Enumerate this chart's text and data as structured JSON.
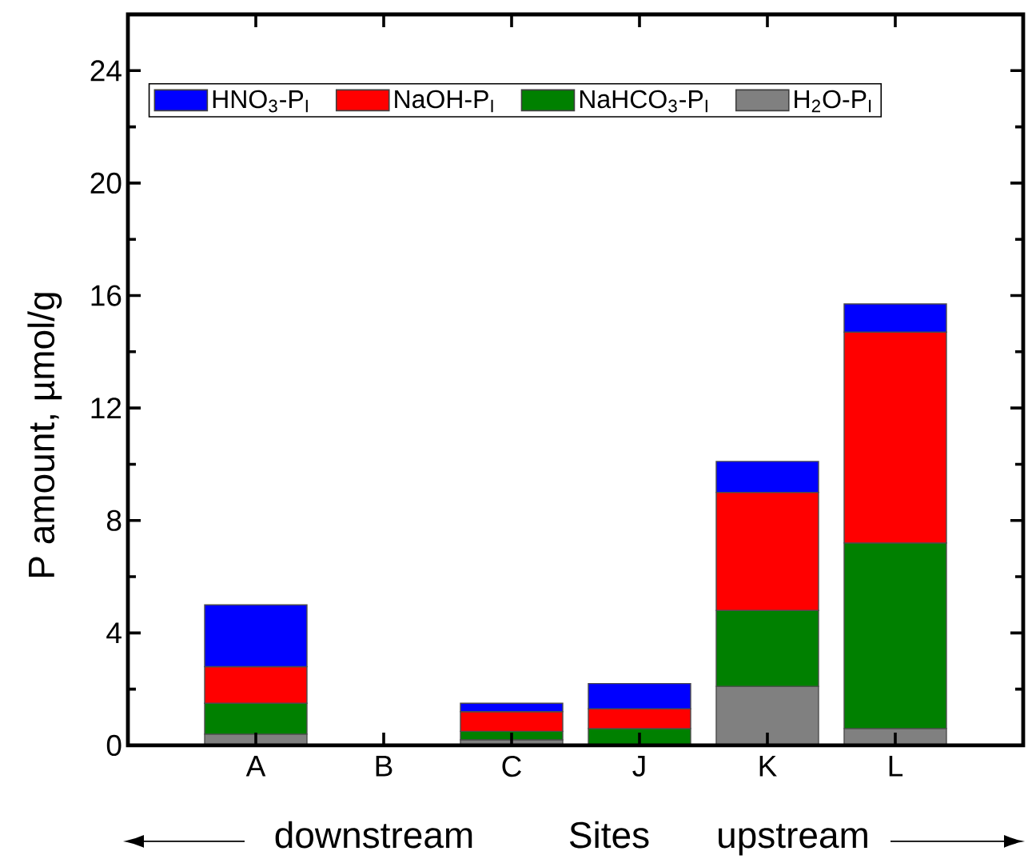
{
  "chart_data": {
    "type": "bar",
    "stacked": true,
    "xlabel": "Sites",
    "ylabel": "P amount, µmol/g",
    "categories": [
      "A",
      "B",
      "C",
      "J",
      "K",
      "L"
    ],
    "series": [
      {
        "name": "H$_{2}$O-P$_{I}$",
        "color": "#808080",
        "values": [
          0.4,
          null,
          0.2,
          null,
          2.1,
          0.6
        ]
      },
      {
        "name": "NaHCO$_{3}$-P$_{I}$",
        "color": "#008000",
        "values": [
          1.1,
          null,
          0.3,
          0.6,
          2.7,
          6.6
        ]
      },
      {
        "name": "NaOH-P$_{I}$",
        "color": "#ff0000",
        "values": [
          1.3,
          null,
          0.7,
          0.7,
          4.2,
          7.5
        ]
      },
      {
        "name": "HNO$_{3}$-P$_{I}$",
        "color": "#0000ff",
        "values": [
          2.2,
          null,
          0.3,
          0.9,
          1.1,
          1.0
        ]
      }
    ],
    "ylim": [
      0,
      26
    ],
    "yticks": [
      0,
      4,
      8,
      12,
      16,
      20,
      24
    ],
    "legend": "top left",
    "annotations": [
      "downstream",
      "upstream"
    ]
  }
}
